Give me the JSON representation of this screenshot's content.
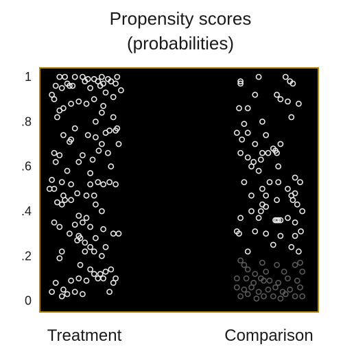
{
  "chart_data": {
    "type": "scatter",
    "title": [
      "Propensity scores",
      "(probabilities)"
    ],
    "categories": [
      "Treatment",
      "Comparison"
    ],
    "y_ticks": [
      {
        "value": 1.0,
        "label": "1"
      },
      {
        "value": 0.8,
        "label": ".8"
      },
      {
        "value": 0.6,
        "label": ".6"
      },
      {
        "value": 0.4,
        "label": ".4"
      },
      {
        "value": 0.2,
        "label": ".2"
      },
      {
        "value": 0.0,
        "label": "0"
      }
    ],
    "ylim": [
      -0.05,
      1.04
    ],
    "grid": false,
    "legend": "none",
    "colors": {
      "plot_background": "#000000",
      "plot_border": "#b8860b",
      "marker": "#e8e8e8",
      "marker_faint": "#5a5a5a"
    },
    "series": [
      {
        "category": "Treatment",
        "points": [
          [
            0.15,
            1.0
          ],
          [
            0.22,
            1.0
          ],
          [
            0.35,
            1.0
          ],
          [
            0.45,
            1.0
          ],
          [
            0.52,
            0.99
          ],
          [
            0.6,
            0.99
          ],
          [
            0.7,
            1.0
          ],
          [
            0.78,
            0.99
          ],
          [
            0.9,
            1.0
          ],
          [
            0.1,
            0.96
          ],
          [
            0.25,
            0.97
          ],
          [
            0.32,
            0.96
          ],
          [
            0.48,
            0.98
          ],
          [
            0.65,
            0.98
          ],
          [
            0.72,
            0.97
          ],
          [
            0.82,
            0.98
          ],
          [
            0.88,
            0.97
          ],
          [
            0.05,
            0.92
          ],
          [
            0.08,
            0.9
          ],
          [
            0.18,
            0.95
          ],
          [
            0.28,
            0.96
          ],
          [
            0.55,
            0.95
          ],
          [
            0.68,
            0.96
          ],
          [
            0.75,
            0.93
          ],
          [
            0.95,
            0.94
          ],
          [
            0.3,
            0.88
          ],
          [
            0.4,
            0.89
          ],
          [
            0.5,
            0.88
          ],
          [
            0.6,
            0.9
          ],
          [
            0.72,
            0.87
          ],
          [
            0.85,
            0.91
          ],
          [
            0.15,
            0.85
          ],
          [
            0.2,
            0.86
          ],
          [
            0.7,
            0.84
          ],
          [
            0.12,
            0.82
          ],
          [
            0.62,
            0.8
          ],
          [
            0.85,
            0.82
          ],
          [
            0.35,
            0.77
          ],
          [
            0.8,
            0.76
          ],
          [
            0.88,
            0.76
          ],
          [
            0.9,
            0.77
          ],
          [
            0.2,
            0.74
          ],
          [
            0.3,
            0.72
          ],
          [
            0.52,
            0.74
          ],
          [
            0.62,
            0.73
          ],
          [
            0.75,
            0.75
          ],
          [
            0.28,
            0.71
          ],
          [
            0.7,
            0.7
          ],
          [
            0.92,
            0.7
          ],
          [
            0.08,
            0.66
          ],
          [
            0.15,
            0.65
          ],
          [
            0.45,
            0.65
          ],
          [
            0.66,
            0.67
          ],
          [
            0.78,
            0.66
          ],
          [
            0.1,
            0.62
          ],
          [
            0.4,
            0.62
          ],
          [
            0.58,
            0.63
          ],
          [
            0.82,
            0.6
          ],
          [
            0.25,
            0.58
          ],
          [
            0.55,
            0.57
          ],
          [
            0.05,
            0.54
          ],
          [
            0.18,
            0.53
          ],
          [
            0.3,
            0.52
          ],
          [
            0.55,
            0.52
          ],
          [
            0.65,
            0.53
          ],
          [
            0.72,
            0.52
          ],
          [
            0.8,
            0.53
          ],
          [
            0.88,
            0.52
          ],
          [
            0.02,
            0.5
          ],
          [
            0.08,
            0.5
          ],
          [
            0.38,
            0.48
          ],
          [
            0.5,
            0.47
          ],
          [
            0.6,
            0.47
          ],
          [
            0.2,
            0.47
          ],
          [
            0.22,
            0.45
          ],
          [
            0.3,
            0.45
          ],
          [
            0.12,
            0.44
          ],
          [
            0.18,
            0.43
          ],
          [
            0.62,
            0.43
          ],
          [
            0.7,
            0.4
          ],
          [
            0.4,
            0.38
          ],
          [
            0.5,
            0.37
          ],
          [
            0.08,
            0.35
          ],
          [
            0.15,
            0.33
          ],
          [
            0.35,
            0.34
          ],
          [
            0.45,
            0.35
          ],
          [
            0.55,
            0.33
          ],
          [
            0.72,
            0.32
          ],
          [
            0.85,
            0.3
          ],
          [
            0.92,
            0.3
          ],
          [
            0.28,
            0.3
          ],
          [
            0.4,
            0.29
          ],
          [
            0.42,
            0.28
          ],
          [
            0.62,
            0.28
          ],
          [
            0.38,
            0.27
          ],
          [
            0.48,
            0.26
          ],
          [
            0.55,
            0.24
          ],
          [
            0.75,
            0.24
          ],
          [
            0.18,
            0.22
          ],
          [
            0.48,
            0.22
          ],
          [
            0.6,
            0.22
          ],
          [
            0.7,
            0.2
          ],
          [
            0.15,
            0.19
          ],
          [
            0.42,
            0.16
          ],
          [
            0.55,
            0.14
          ],
          [
            0.6,
            0.12
          ],
          [
            0.68,
            0.12
          ],
          [
            0.75,
            0.13
          ],
          [
            0.82,
            0.14
          ],
          [
            0.4,
            0.1
          ],
          [
            0.1,
            0.08
          ],
          [
            0.3,
            0.09
          ],
          [
            0.5,
            0.09
          ],
          [
            0.65,
            0.1
          ],
          [
            0.72,
            0.1
          ],
          [
            0.85,
            0.08
          ],
          [
            0.88,
            0.1
          ],
          [
            0.05,
            0.04
          ],
          [
            0.2,
            0.05
          ],
          [
            0.25,
            0.03
          ],
          [
            0.35,
            0.04
          ],
          [
            0.45,
            0.03
          ],
          [
            0.18,
            0.02
          ],
          [
            0.8,
            0.04
          ]
        ]
      },
      {
        "category": "Comparison",
        "points": [
          [
            0.1,
            0.98
          ],
          [
            0.1,
            0.97
          ],
          [
            0.35,
            1.0
          ],
          [
            0.72,
            1.0
          ],
          [
            0.78,
            0.98
          ],
          [
            0.82,
            0.97
          ],
          [
            0.3,
            0.92
          ],
          [
            0.6,
            0.92
          ],
          [
            0.65,
            0.9
          ],
          [
            0.75,
            0.89
          ],
          [
            0.9,
            0.88
          ],
          [
            0.08,
            0.86
          ],
          [
            0.2,
            0.86
          ],
          [
            0.8,
            0.82
          ],
          [
            0.4,
            0.8
          ],
          [
            0.15,
            0.79
          ],
          [
            0.05,
            0.75
          ],
          [
            0.2,
            0.75
          ],
          [
            0.45,
            0.74
          ],
          [
            0.12,
            0.72
          ],
          [
            0.3,
            0.7
          ],
          [
            0.65,
            0.7
          ],
          [
            0.55,
            0.68
          ],
          [
            0.58,
            0.67
          ],
          [
            0.4,
            0.66
          ],
          [
            0.48,
            0.66
          ],
          [
            0.6,
            0.66
          ],
          [
            0.1,
            0.66
          ],
          [
            0.2,
            0.64
          ],
          [
            0.28,
            0.62
          ],
          [
            0.38,
            0.63
          ],
          [
            0.25,
            0.6
          ],
          [
            0.62,
            0.6
          ],
          [
            0.35,
            0.58
          ],
          [
            0.15,
            0.53
          ],
          [
            0.5,
            0.53
          ],
          [
            0.62,
            0.53
          ],
          [
            0.85,
            0.55
          ],
          [
            0.92,
            0.53
          ],
          [
            0.4,
            0.5
          ],
          [
            0.75,
            0.5
          ],
          [
            0.85,
            0.48
          ],
          [
            0.25,
            0.47
          ],
          [
            0.45,
            0.47
          ],
          [
            0.6,
            0.45
          ],
          [
            0.82,
            0.45
          ],
          [
            0.8,
            0.47
          ],
          [
            0.4,
            0.43
          ],
          [
            0.45,
            0.42
          ],
          [
            0.88,
            0.43
          ],
          [
            0.25,
            0.4
          ],
          [
            0.38,
            0.4
          ],
          [
            0.95,
            0.4
          ],
          [
            0.1,
            0.37
          ],
          [
            0.35,
            0.37
          ],
          [
            0.58,
            0.36
          ],
          [
            0.6,
            0.36
          ],
          [
            0.62,
            0.36
          ],
          [
            0.65,
            0.36
          ],
          [
            0.75,
            0.37
          ],
          [
            0.85,
            0.35
          ],
          [
            0.05,
            0.31
          ],
          [
            0.08,
            0.3
          ],
          [
            0.3,
            0.31
          ],
          [
            0.45,
            0.3
          ],
          [
            0.65,
            0.29
          ],
          [
            0.85,
            0.29
          ],
          [
            0.93,
            0.31
          ],
          [
            0.55,
            0.25
          ],
          [
            0.8,
            0.24
          ],
          [
            0.9,
            0.22
          ],
          [
            0.2,
            0.22
          ],
          [
            0.1,
            0.18
          ],
          [
            0.15,
            0.16
          ],
          [
            0.4,
            0.17
          ],
          [
            0.6,
            0.16
          ],
          [
            0.85,
            0.16
          ],
          [
            0.92,
            0.17
          ],
          [
            0.2,
            0.14
          ],
          [
            0.3,
            0.12
          ],
          [
            0.45,
            0.13
          ],
          [
            0.7,
            0.13
          ],
          [
            0.95,
            0.13
          ],
          [
            0.05,
            0.1
          ],
          [
            0.18,
            0.1
          ],
          [
            0.28,
            0.08
          ],
          [
            0.38,
            0.1
          ],
          [
            0.42,
            0.09
          ],
          [
            0.5,
            0.09
          ],
          [
            0.62,
            0.08
          ],
          [
            0.75,
            0.1
          ],
          [
            0.88,
            0.09
          ],
          [
            0.05,
            0.06
          ],
          [
            0.15,
            0.05
          ],
          [
            0.25,
            0.06
          ],
          [
            0.35,
            0.04
          ],
          [
            0.48,
            0.05
          ],
          [
            0.58,
            0.06
          ],
          [
            0.68,
            0.04
          ],
          [
            0.78,
            0.05
          ],
          [
            0.92,
            0.06
          ],
          [
            0.1,
            0.02
          ],
          [
            0.2,
            0.03
          ],
          [
            0.32,
            0.01
          ],
          [
            0.42,
            0.02
          ],
          [
            0.55,
            0.02
          ],
          [
            0.65,
            0.01
          ],
          [
            0.72,
            0.03
          ],
          [
            0.85,
            0.02
          ],
          [
            0.95,
            0.02
          ]
        ]
      }
    ]
  }
}
